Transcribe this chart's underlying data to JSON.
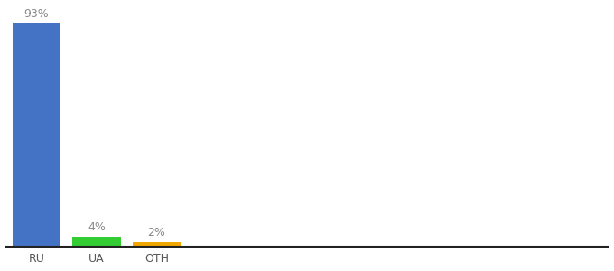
{
  "categories": [
    "RU",
    "UA",
    "OTH"
  ],
  "x_positions": [
    0,
    1,
    2
  ],
  "values": [
    93,
    4,
    2
  ],
  "bar_colors": [
    "#4472c4",
    "#33cc33",
    "#f0a800"
  ],
  "labels": [
    "93%",
    "4%",
    "2%"
  ],
  "xlim": [
    -0.5,
    9.5
  ],
  "ylim": [
    0,
    100
  ],
  "background_color": "#ffffff",
  "label_fontsize": 9,
  "tick_fontsize": 9,
  "bar_width": 0.8
}
